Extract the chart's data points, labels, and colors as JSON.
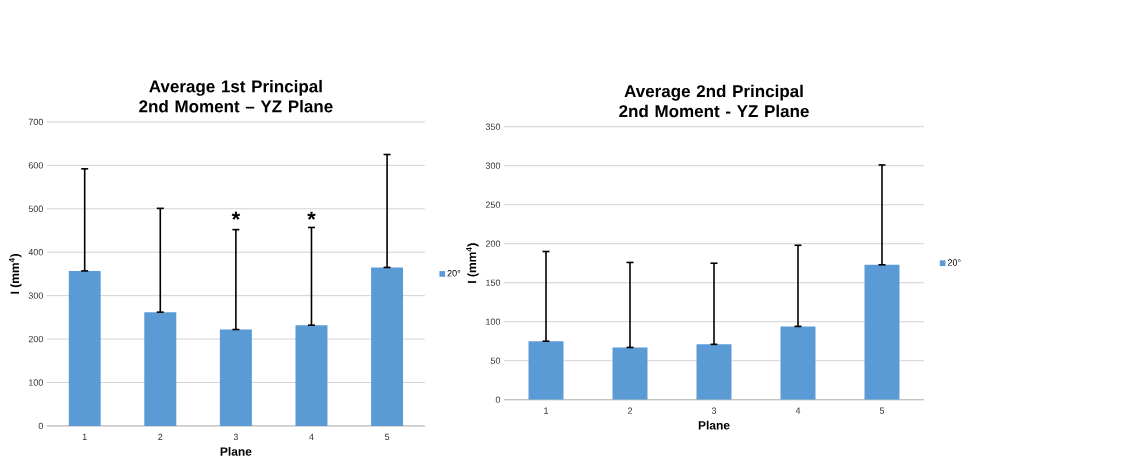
{
  "chart_data": [
    {
      "type": "bar",
      "title": "Average 1st Principal 2nd Moment – YZ Plane",
      "xlabel": "Plane",
      "ylabel": "I (mm$^{4}$)",
      "categories": [
        "1",
        "2",
        "3",
        "4",
        "5"
      ],
      "series": [
        {
          "name": "20°",
          "color": "#5b9bd5",
          "values": [
            357,
            262,
            222,
            232,
            365
          ],
          "errors": [
            [
              357,
              592
            ],
            [
              262,
              501
            ],
            [
              222,
              452
            ],
            [
              232,
              457
            ],
            [
              365,
              625
            ]
          ]
        }
      ],
      "ylim": [
        0,
        700
      ],
      "yticks": [
        0,
        100,
        200,
        300,
        400,
        500,
        600,
        700
      ],
      "grid": "y",
      "legend": "right",
      "annotations": [
        "*",
        "*"
      ]
    },
    {
      "type": "bar",
      "title": "Average 2nd Principal 2nd Moment - YZ Plane",
      "xlabel": "Plane",
      "ylabel": "I (mm$^{4}$)",
      "categories": [
        "1",
        "2",
        "3",
        "4",
        "5"
      ],
      "series": [
        {
          "name": "20°",
          "color": "#5b9bd5",
          "values": [
            75,
            67,
            71,
            94,
            173
          ],
          "errors": [
            [
              75,
              190
            ],
            [
              67,
              176
            ],
            [
              71,
              175
            ],
            [
              94,
              198
            ],
            [
              173,
              301
            ]
          ]
        }
      ],
      "ylim": [
        0,
        350
      ],
      "yticks": [
        0,
        50,
        100,
        150,
        200,
        250,
        300,
        350
      ],
      "grid": "y",
      "legend": "right"
    }
  ]
}
